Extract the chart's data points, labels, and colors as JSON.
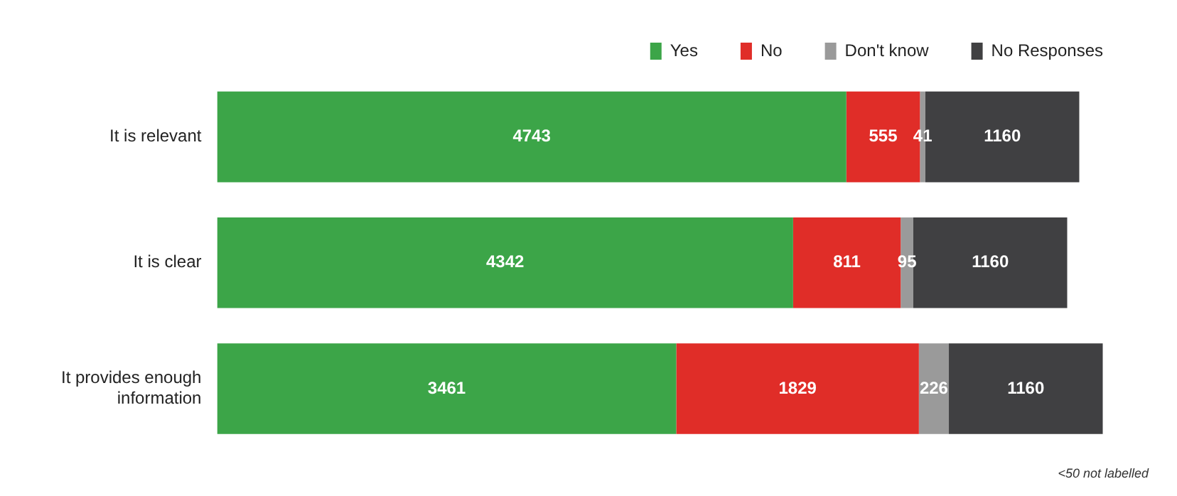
{
  "chart_data": {
    "type": "bar",
    "orientation": "horizontal",
    "stacked": true,
    "data_labels": true,
    "legend": "top",
    "grid": false,
    "tick_labels": "y",
    "categories": [
      "It is relevant",
      "It is clear",
      "It provides enough information"
    ],
    "series": [
      {
        "name": "Yes",
        "color": "#3ca548",
        "values": [
          4743,
          4342,
          3461
        ]
      },
      {
        "name": "No",
        "color": "#e02d28",
        "values": [
          555,
          811,
          1829
        ]
      },
      {
        "name": "Don't know",
        "color": "#9a9a9a",
        "values": [
          41,
          95,
          226
        ]
      },
      {
        "name": "No Responses",
        "color": "#404042",
        "values": [
          1160,
          1160,
          1160
        ]
      }
    ],
    "annotations": [
      "<50 not labelled"
    ]
  }
}
